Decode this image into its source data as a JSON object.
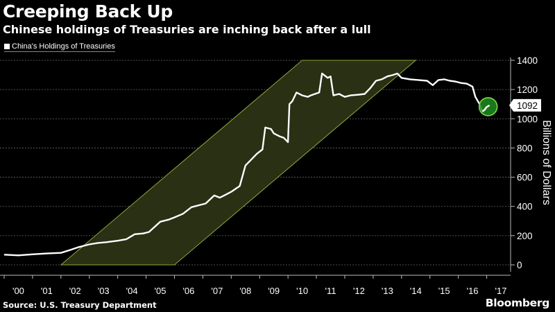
{
  "header": {
    "title": "Creeping Back Up",
    "subtitle": "Chinese holdings of Treasuries are inching back after a lull"
  },
  "legend": {
    "label": "China's Holdings of Treasuries"
  },
  "footer": {
    "source": "Source: U.S. Treasury Department",
    "brand": "Bloomberg"
  },
  "colors": {
    "background": "#000000",
    "line": "#ffffff",
    "channel_fill": "#2b3315",
    "channel_edge": "#8fa83a",
    "highlight": "#1e8c1e",
    "highlight_edge": "#7ddc4a",
    "grid": "#6a6a6a"
  },
  "chart_data": {
    "type": "line",
    "title": "Creeping Back Up",
    "subtitle": "Chinese holdings of Treasuries are inching back after a lull",
    "ylabel": "Billions of Dollars",
    "xlabel": "",
    "ylim": [
      0,
      1400
    ],
    "yticks": [
      0,
      200,
      400,
      600,
      800,
      1000,
      1200,
      1400
    ],
    "xlim": [
      2000.0,
      2017.5
    ],
    "xtick_labels": [
      "'00",
      "'01",
      "'02",
      "'03",
      "'04",
      "'05",
      "'06",
      "'07",
      "'08",
      "'09",
      "'10",
      "'11",
      "'12",
      "'13",
      "'14",
      "'15",
      "'16",
      "'17"
    ],
    "grid": true,
    "legend_position": "top-left",
    "series": [
      {
        "name": "China's Holdings of Treasuries",
        "x": [
          2000.0,
          2000.5,
          2001.0,
          2001.5,
          2002.0,
          2002.3,
          2002.6,
          2003.0,
          2003.3,
          2003.6,
          2004.0,
          2004.3,
          2004.6,
          2004.9,
          2005.1,
          2005.5,
          2005.8,
          2006.0,
          2006.3,
          2006.6,
          2006.9,
          2007.1,
          2007.4,
          2007.6,
          2007.8,
          2008.0,
          2008.3,
          2008.5,
          2008.7,
          2008.9,
          2009.1,
          2009.2,
          2009.4,
          2009.5,
          2009.7,
          2009.85,
          2010.0,
          2010.05,
          2010.15,
          2010.3,
          2010.5,
          2010.7,
          2010.8,
          2010.95,
          2011.1,
          2011.2,
          2011.4,
          2011.5,
          2011.6,
          2011.8,
          2012.0,
          2012.2,
          2012.5,
          2012.7,
          2012.9,
          2013.1,
          2013.3,
          2013.5,
          2013.7,
          2013.85,
          2014.0,
          2014.3,
          2014.6,
          2014.9,
          2015.1,
          2015.3,
          2015.5,
          2015.7,
          2015.9,
          2016.1,
          2016.3,
          2016.5,
          2016.6,
          2016.75,
          2016.85,
          2016.92,
          2017.0,
          2017.1
        ],
        "values": [
          70,
          65,
          72,
          78,
          82,
          100,
          120,
          140,
          150,
          155,
          165,
          175,
          210,
          215,
          225,
          295,
          310,
          325,
          350,
          395,
          410,
          420,
          475,
          460,
          480,
          500,
          540,
          680,
          720,
          760,
          790,
          940,
          930,
          900,
          880,
          870,
          840,
          1100,
          1120,
          1180,
          1160,
          1150,
          1160,
          1170,
          1180,
          1310,
          1280,
          1290,
          1160,
          1170,
          1150,
          1160,
          1165,
          1170,
          1210,
          1260,
          1270,
          1290,
          1300,
          1310,
          1280,
          1270,
          1265,
          1260,
          1230,
          1265,
          1270,
          1260,
          1255,
          1245,
          1240,
          1220,
          1150,
          1100,
          1050,
          1060,
          1080,
          1092
        ]
      }
    ],
    "annotations": [
      {
        "type": "trend-channel",
        "from_x": 2002.0,
        "to_x": 2014.5,
        "lower_y": 0,
        "upper_y": 1400
      },
      {
        "type": "highlight-circle",
        "x": 2017.1,
        "y": 1092
      },
      {
        "type": "value-callout",
        "x": 2017.1,
        "y": 1092,
        "label": "1092"
      }
    ],
    "last_value_label": "1092"
  }
}
